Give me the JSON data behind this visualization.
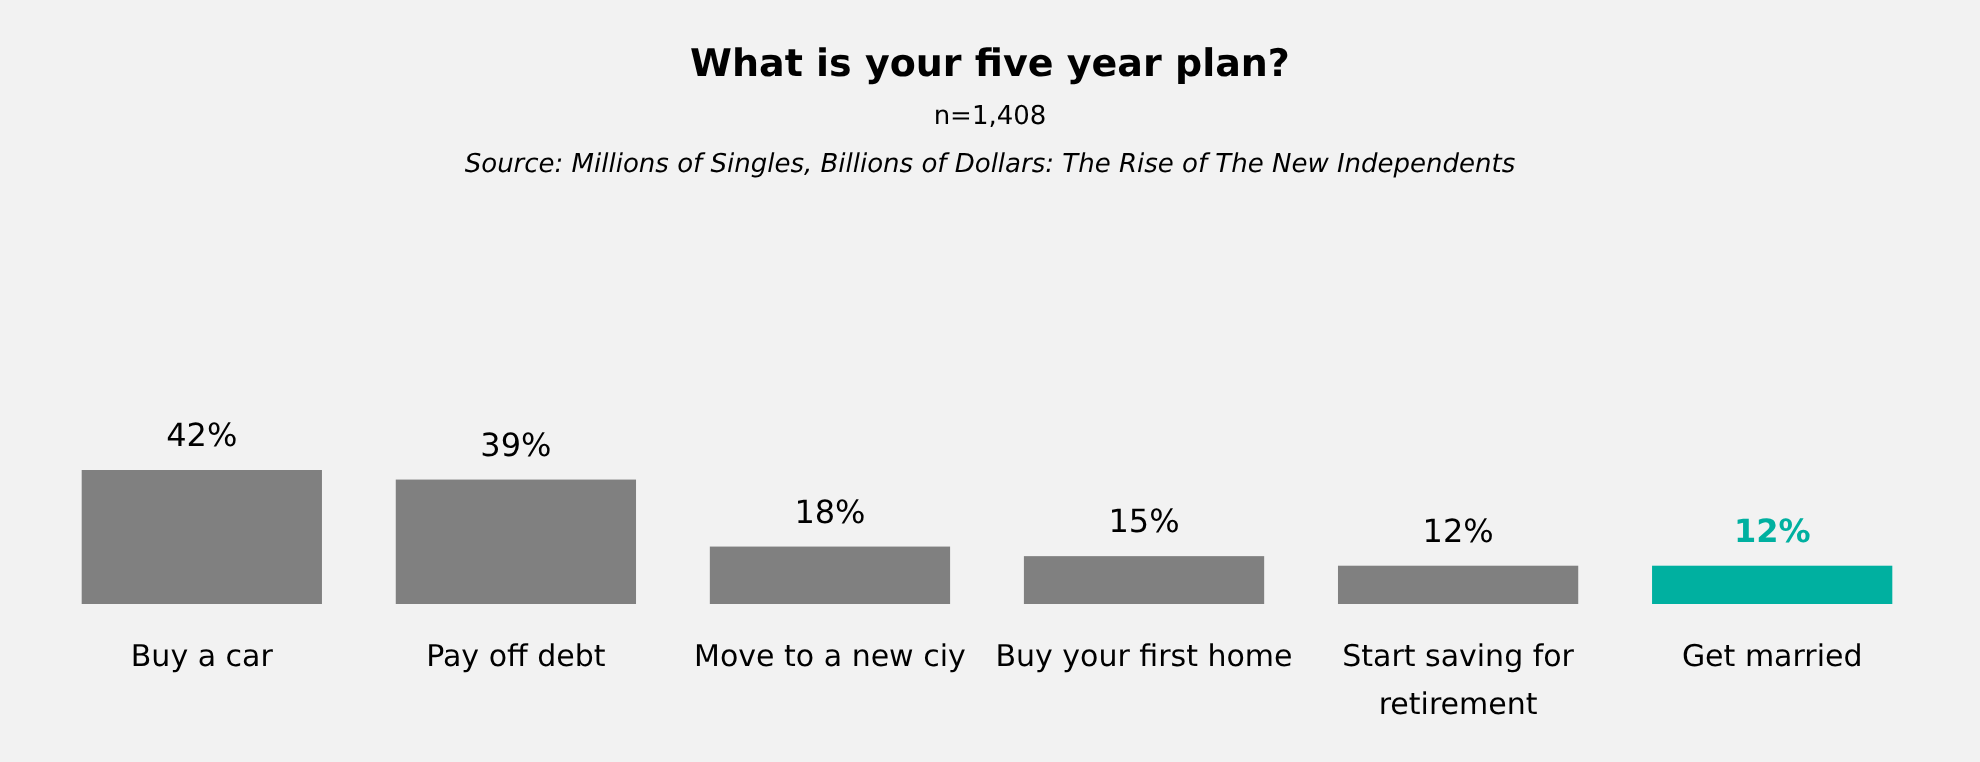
{
  "chart_data": {
    "type": "bar",
    "title": "What is your five year plan?",
    "subtitle": "n=1,408",
    "annotations": [
      "Source: Millions of Singles, Billions of Dollars: The Rise of The New Independents"
    ],
    "categories": [
      "Buy a car",
      "Pay off debt",
      "Move to a new ciy",
      "Buy your first home",
      "Start saving for retirement",
      "Get married"
    ],
    "values": [
      42,
      39,
      18,
      15,
      12,
      12
    ],
    "value_labels": [
      "42%",
      "39%",
      "18%",
      "15%",
      "12%",
      "12%"
    ],
    "colors": [
      "#808080",
      "#808080",
      "#808080",
      "#808080",
      "#808080",
      "#00b0a0"
    ]
  }
}
